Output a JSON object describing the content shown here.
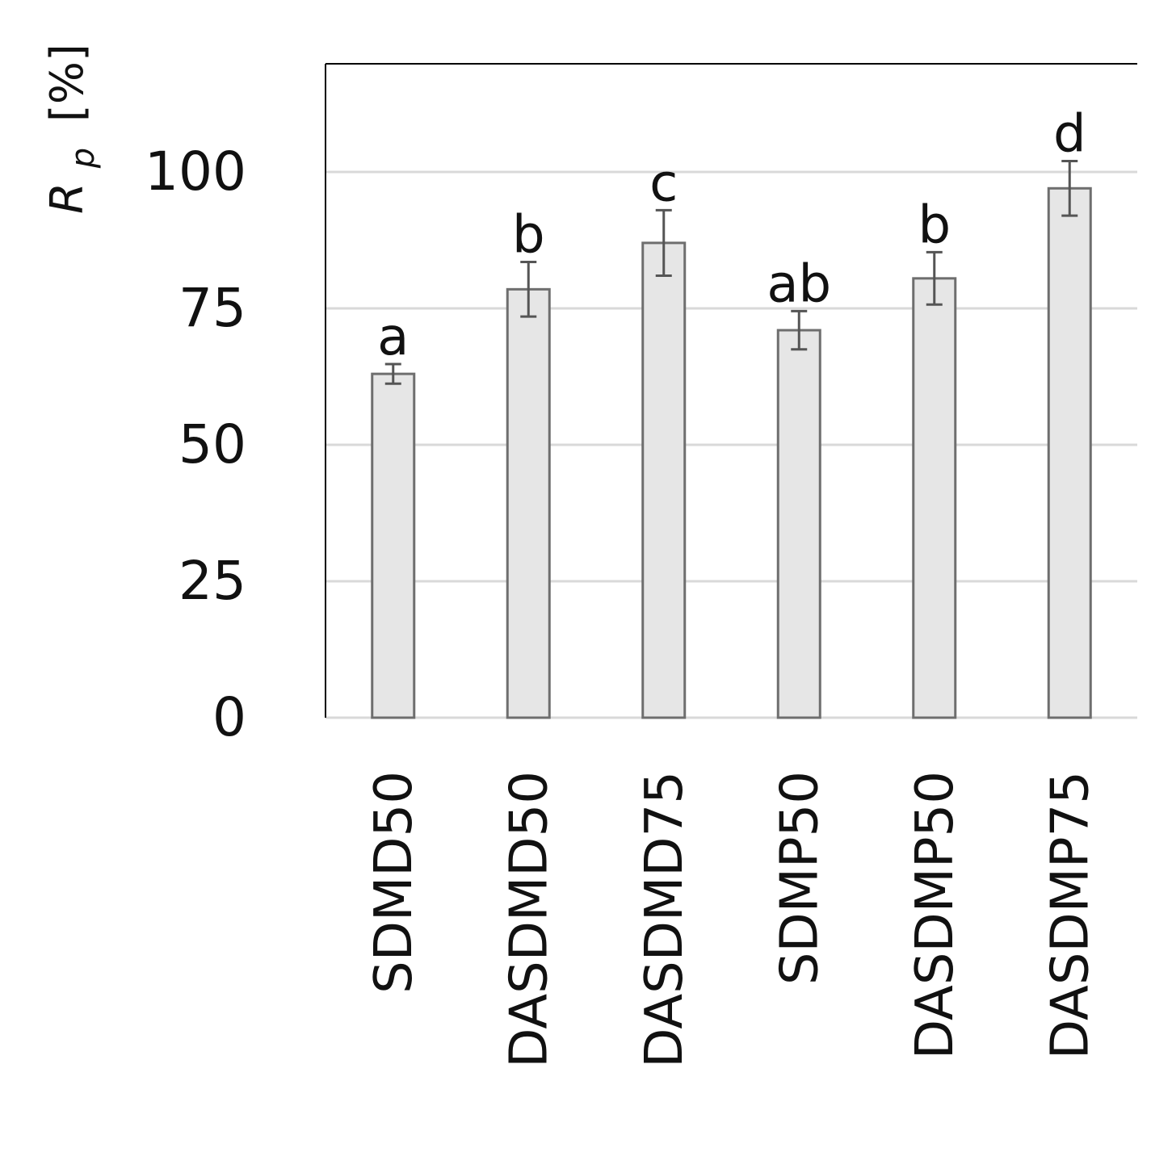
{
  "chart_data": {
    "type": "bar",
    "ylabel_main": "R",
    "ylabel_sub": "p",
    "ylabel_unit": "[%]",
    "categories": [
      "SDMD50",
      "DASDMD50",
      "DASDMD75",
      "SDMP50",
      "DASDMP50",
      "DASDMP75"
    ],
    "values": [
      63,
      78.5,
      87,
      71,
      80.5,
      97
    ],
    "errors": [
      1.8,
      5,
      6,
      3.5,
      4.8,
      5
    ],
    "significance": [
      "a",
      "b",
      "c",
      "ab",
      "b",
      "d"
    ],
    "yticks": [
      "0",
      "25",
      "50",
      "75",
      "100"
    ],
    "ylim": [
      0,
      120
    ],
    "grid": true,
    "colors": {
      "bar_fill": "#e6e6e6",
      "bar_stroke": "#6e6e6e",
      "error_bar": "#555555",
      "grid": "#d9d9d9",
      "axis": "#000000"
    }
  }
}
